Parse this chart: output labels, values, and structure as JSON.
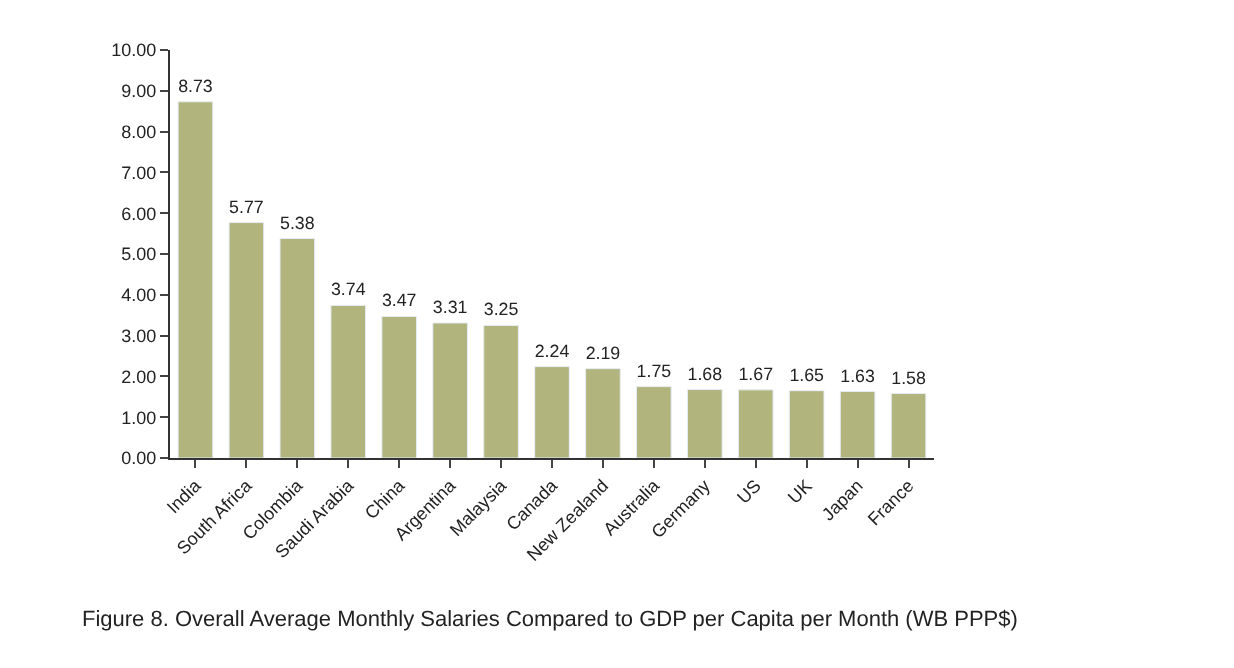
{
  "chart_data": {
    "type": "bar",
    "categories": [
      "India",
      "South Africa",
      "Colombia",
      "Saudi Arabia",
      "China",
      "Argentina",
      "Malaysia",
      "Canada",
      "New Zealand",
      "Australia",
      "Germany",
      "US",
      "UK",
      "Japan",
      "France"
    ],
    "values": [
      8.73,
      5.77,
      5.38,
      3.74,
      3.47,
      3.31,
      3.25,
      2.24,
      2.19,
      1.75,
      1.68,
      1.67,
      1.65,
      1.63,
      1.58
    ],
    "color": "#b2b47e",
    "data_labels": true,
    "ylim": [
      0,
      10
    ],
    "yticks": [
      {
        "value": 0,
        "label": "0.00"
      },
      {
        "value": 1,
        "label": "1.00"
      },
      {
        "value": 2,
        "label": "2.00"
      },
      {
        "value": 3,
        "label": "3.00"
      },
      {
        "value": 4,
        "label": "4.00"
      },
      {
        "value": 5,
        "label": "5.00"
      },
      {
        "value": 6,
        "label": "6.00"
      },
      {
        "value": 7,
        "label": "7.00"
      },
      {
        "value": 8,
        "label": "8.00"
      },
      {
        "value": 9,
        "label": "9.00"
      },
      {
        "value": 10,
        "label": "10.00"
      }
    ],
    "annotations": [
      "Figure 8. Overall Average Monthly Salaries Compared to GDP per Capita per Month (WB PPP$)"
    ]
  }
}
